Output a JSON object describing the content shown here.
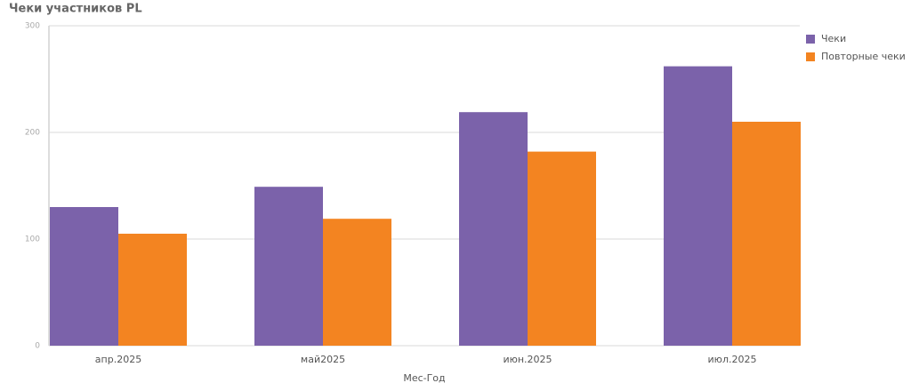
{
  "chart_data": {
    "type": "bar",
    "title": "Чеки участников PL",
    "x_label": "Мес-Год",
    "categories": [
      "апр.2025",
      "май2025",
      "июн.2025",
      "июл.2025"
    ],
    "series": [
      {
        "name": "Чеки",
        "color": "#7b62aa",
        "values": [
          130,
          149,
          219,
          262
        ]
      },
      {
        "name": "Повторные чеки",
        "color": "#f38421",
        "values": [
          105,
          119,
          182,
          210
        ]
      }
    ],
    "ylim": [
      0,
      300
    ],
    "yticks": [
      0,
      100,
      200,
      300
    ],
    "grid": true,
    "legend": "right"
  }
}
